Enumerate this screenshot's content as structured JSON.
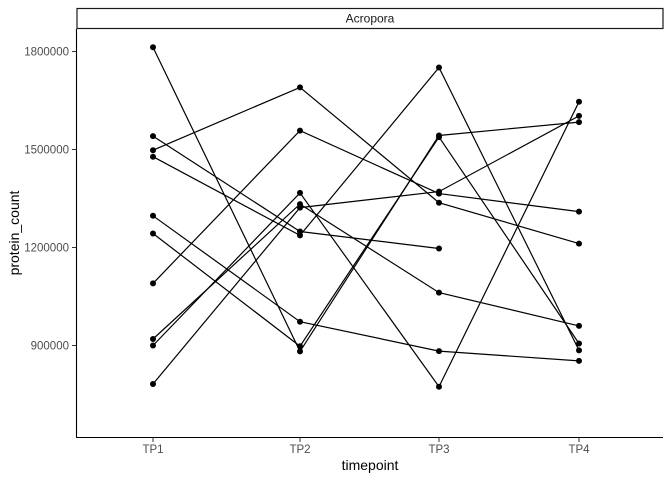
{
  "chart_data": {
    "type": "line",
    "facet_label": "Acropora",
    "xlabel": "timepoint",
    "ylabel": "protein_count",
    "categories": [
      "TP1",
      "TP2",
      "TP3",
      "TP4"
    ],
    "yticks": [
      900000,
      1200000,
      1500000,
      1800000
    ],
    "ytick_labels": [
      "900000",
      "1200000",
      "1500000",
      "1800000"
    ],
    "ylim": [
      720000,
      1860000
    ],
    "grid": false,
    "legend": "none",
    "series": [
      {
        "values": [
          1813000,
          882000,
          1543000,
          1584000
        ]
      },
      {
        "values": [
          1541000,
          1249000,
          1197000,
          null
        ]
      },
      {
        "values": [
          1498000,
          1690000,
          1337000,
          1212000
        ]
      },
      {
        "values": [
          1478000,
          1237000,
          1751000,
          885000
        ]
      },
      {
        "values": [
          1297000,
          973000,
          883000,
          853000
        ]
      },
      {
        "values": [
          1243000,
          898000,
          1538000,
          906000
        ]
      },
      {
        "values": [
          1090000,
          1558000,
          1365000,
          1310000
        ]
      },
      {
        "values": [
          920000,
          1333000,
          1062000,
          960000
        ]
      },
      {
        "values": [
          900000,
          1367000,
          774000,
          1646000
        ]
      },
      {
        "values": [
          782000,
          1322000,
          1371000,
          1603000
        ]
      }
    ]
  }
}
